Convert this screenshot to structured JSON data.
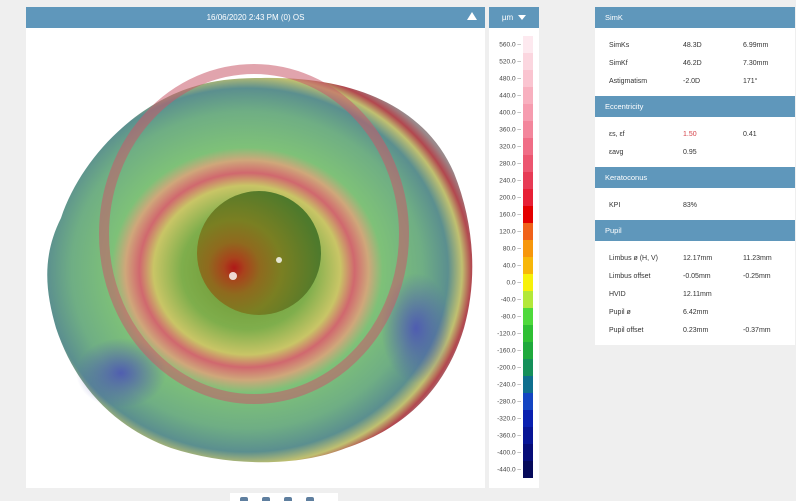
{
  "map": {
    "title": "16/06/2020 2:43 PM (0) OS",
    "collapse_icon": "triangle-up-icon"
  },
  "legend": {
    "unit_label": "µm",
    "dropdown_icon": "chevron-down-icon",
    "ticks": [
      "560.0",
      "520.0",
      "480.0",
      "440.0",
      "400.0",
      "360.0",
      "320.0",
      "280.0",
      "240.0",
      "200.0",
      "160.0",
      "120.0",
      "80.0",
      "40.0",
      "0.0",
      "-40.0",
      "-80.0",
      "-120.0",
      "-160.0",
      "-200.0",
      "-240.0",
      "-280.0",
      "-320.0",
      "-360.0",
      "-400.0",
      "-440.0"
    ],
    "colors": [
      "#fde9ef",
      "#fbd6df",
      "#fac4d0",
      "#f8b0bf",
      "#f69caf",
      "#f3869c",
      "#f06d86",
      "#ec5670",
      "#e73b55",
      "#e72036",
      "#e40000",
      "#f0621a",
      "#f7970c",
      "#f7b70a",
      "#f7f10a",
      "#b3e83a",
      "#4fd93b",
      "#2fbf33",
      "#1fa93c",
      "#15905a",
      "#0f6f8e",
      "#1445c2",
      "#0a20b0",
      "#081596",
      "#070d78",
      "#060a5a"
    ]
  },
  "simk": {
    "header": "SimK",
    "rows": [
      {
        "label": "SimKs",
        "v1": "48.3D",
        "v2": "6.99mm"
      },
      {
        "label": "SimKf",
        "v1": "46.2D",
        "v2": "7.30mm"
      },
      {
        "label": "Astigmatism",
        "v1": "-2.0D",
        "v2": "171°"
      }
    ]
  },
  "eccentricity": {
    "header": "Eccentricity",
    "rows": [
      {
        "label": "εs, εf",
        "v1": "1.50",
        "v2": "0.41"
      },
      {
        "label": "εavg",
        "v1": "0.95",
        "v2": ""
      }
    ]
  },
  "keratoconus": {
    "header": "Keratoconus",
    "rows": [
      {
        "label": "KPI",
        "v1": "83%",
        "v2": ""
      }
    ]
  },
  "pupil": {
    "header": "Pupil",
    "rows": [
      {
        "label": "Limbus ø (H, V)",
        "v1": "12.17mm",
        "v2": "11.23mm"
      },
      {
        "label": "Limbus offset",
        "v1": "-0.05mm",
        "v2": "-0.25mm"
      },
      {
        "label": "HVID",
        "v1": "12.11mm",
        "v2": ""
      },
      {
        "label": "Pupil ø",
        "v1": "6.42mm",
        "v2": ""
      },
      {
        "label": "Pupil offset",
        "v1": "0.23mm",
        "v2": "-0.37mm"
      }
    ]
  },
  "colors": {
    "header_blue": "#5f97bb",
    "highlight_red": "#d4434a"
  }
}
